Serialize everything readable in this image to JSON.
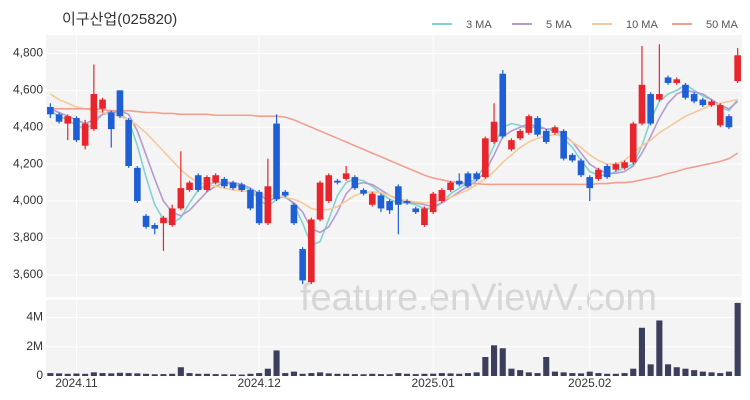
{
  "chart_data": {
    "type": "candlestick",
    "title": "이구산업(025820)",
    "watermark": "feature.enViewV.com",
    "categories": [
      null,
      null,
      null,
      "2024.11",
      null,
      null,
      null,
      null,
      null,
      null,
      null,
      null,
      null,
      null,
      null,
      null,
      null,
      null,
      null,
      null,
      null,
      null,
      null,
      null,
      "2024.12",
      null,
      null,
      null,
      null,
      null,
      null,
      null,
      null,
      null,
      null,
      null,
      null,
      null,
      null,
      null,
      null,
      null,
      null,
      null,
      "2025.01",
      null,
      null,
      null,
      null,
      null,
      null,
      null,
      null,
      null,
      null,
      null,
      null,
      null,
      null,
      null,
      null,
      null,
      "2025.02",
      null,
      null,
      null,
      null,
      null,
      null,
      null,
      null,
      null,
      null,
      null,
      null,
      null,
      null,
      null,
      null,
      null
    ],
    "ohlc": {
      "open": [
        4510,
        4470,
        4420,
        4450,
        4300,
        4390,
        4500,
        4480,
        4600,
        4440,
        4180,
        3920,
        3870,
        3880,
        3870,
        3960,
        4060,
        4140,
        4060,
        4100,
        4120,
        4100,
        4090,
        4060,
        4050,
        3880,
        4420,
        4050,
        3980,
        3740,
        3560,
        3900,
        4000,
        4110,
        4120,
        4130,
        4060,
        3980,
        4030,
        4000,
        4080,
        4000,
        3960,
        3870,
        3940,
        4000,
        4060,
        4110,
        4150,
        4150,
        4130,
        4320,
        4690,
        4280,
        4340,
        4370,
        4450,
        4380,
        4370,
        4380,
        4250,
        4220,
        4130,
        4120,
        4190,
        4170,
        4180,
        4210,
        4420,
        4580,
        4550,
        4670,
        4640,
        4630,
        4580,
        4550,
        4520,
        4410,
        4460,
        4650
      ],
      "high": [
        4530,
        4480,
        4470,
        4460,
        4440,
        4740,
        4560,
        4490,
        4600,
        4450,
        4190,
        3930,
        3880,
        3920,
        3980,
        4270,
        4110,
        4150,
        4140,
        4150,
        4130,
        4110,
        4100,
        4070,
        4060,
        4230,
        4470,
        4060,
        3990,
        3750,
        3910,
        4110,
        4150,
        4120,
        4190,
        4140,
        4070,
        4050,
        4040,
        4010,
        4090,
        4010,
        3970,
        3970,
        4050,
        4070,
        4110,
        4150,
        4160,
        4160,
        4350,
        4530,
        4710,
        4340,
        4390,
        4470,
        4460,
        4390,
        4410,
        4390,
        4260,
        4230,
        4140,
        4180,
        4200,
        4210,
        4220,
        4430,
        4840,
        4590,
        4850,
        4680,
        4670,
        4640,
        4590,
        4560,
        4550,
        4530,
        4470,
        4830
      ],
      "low": [
        4450,
        4420,
        4330,
        4320,
        4280,
        4380,
        4480,
        4290,
        4450,
        4180,
        3990,
        3850,
        3820,
        3730,
        3860,
        3950,
        4050,
        4050,
        4050,
        4090,
        4070,
        4060,
        4050,
        3950,
        3870,
        3870,
        4000,
        4020,
        3870,
        3550,
        3550,
        3890,
        3990,
        4090,
        4110,
        4060,
        4030,
        3970,
        3940,
        3930,
        3820,
        3980,
        3930,
        3860,
        3930,
        3990,
        4050,
        4080,
        4070,
        4110,
        4120,
        4310,
        4340,
        4270,
        4330,
        4360,
        4350,
        4310,
        4360,
        4220,
        4210,
        4130,
        4000,
        4110,
        4120,
        4160,
        4170,
        4200,
        4410,
        4410,
        4540,
        4630,
        4630,
        4550,
        4530,
        4510,
        4510,
        4400,
        4390,
        4640
      ],
      "close": [
        4470,
        4430,
        4460,
        4330,
        4420,
        4580,
        4550,
        4390,
        4460,
        4190,
        4000,
        3860,
        3850,
        3910,
        3960,
        4070,
        4100,
        4060,
        4130,
        4140,
        4080,
        4070,
        4060,
        3960,
        3880,
        4080,
        4010,
        4030,
        3880,
        3570,
        3900,
        4100,
        4140,
        4100,
        4150,
        4070,
        4040,
        4040,
        3960,
        3950,
        3980,
        3990,
        3940,
        3960,
        4040,
        4060,
        4100,
        4090,
        4080,
        4120,
        4340,
        4430,
        4350,
        4330,
        4380,
        4460,
        4360,
        4320,
        4400,
        4230,
        4220,
        4140,
        4070,
        4170,
        4130,
        4200,
        4210,
        4420,
        4630,
        4420,
        4580,
        4640,
        4660,
        4560,
        4540,
        4520,
        4540,
        4520,
        4400,
        4790
      ]
    },
    "up_color": "#e8242c",
    "down_color": "#1f5fd6",
    "series": [
      {
        "name": "3 MA",
        "color": "#7fd3d0",
        "values": [
          4490,
          4460,
          4440,
          4410,
          4390,
          4420,
          4470,
          4490,
          4470,
          4440,
          4300,
          4130,
          3980,
          3900,
          3880,
          3910,
          3990,
          4060,
          4090,
          4100,
          4100,
          4090,
          4080,
          4060,
          4010,
          3970,
          4010,
          4030,
          3980,
          3880,
          3760,
          3780,
          3900,
          4030,
          4100,
          4120,
          4110,
          4080,
          4040,
          4010,
          3990,
          3990,
          3980,
          3960,
          3960,
          3990,
          4040,
          4070,
          4100,
          4120,
          4200,
          4300,
          4400,
          4420,
          4410,
          4390,
          4410,
          4390,
          4380,
          4340,
          4290,
          4220,
          4160,
          4140,
          4140,
          4160,
          4180,
          4200,
          4300,
          4440,
          4540,
          4580,
          4600,
          4630,
          4600,
          4570,
          4550,
          4510,
          4490,
          4550
        ]
      },
      {
        "name": "5 MA",
        "color": "#b39ccf",
        "values": [
          4500,
          4480,
          4460,
          4440,
          4420,
          4440,
          4470,
          4480,
          4490,
          4470,
          4380,
          4250,
          4120,
          4000,
          3940,
          3920,
          3950,
          4000,
          4050,
          4080,
          4100,
          4100,
          4090,
          4070,
          4040,
          4000,
          4020,
          4020,
          3990,
          3940,
          3850,
          3830,
          3860,
          3940,
          4040,
          4090,
          4100,
          4090,
          4060,
          4030,
          4010,
          3990,
          3990,
          3980,
          3970,
          3990,
          4020,
          4050,
          4080,
          4110,
          4160,
          4250,
          4350,
          4380,
          4400,
          4420,
          4400,
          4390,
          4390,
          4360,
          4320,
          4260,
          4200,
          4170,
          4150,
          4150,
          4160,
          4190,
          4260,
          4350,
          4450,
          4530,
          4580,
          4600,
          4590,
          4580,
          4550,
          4520,
          4500,
          4540
        ]
      },
      {
        "name": "10 MA",
        "color": "#f5c99a",
        "values": [
          4580,
          4550,
          4530,
          4510,
          4500,
          4490,
          4480,
          4470,
          4460,
          4440,
          4410,
          4370,
          4320,
          4270,
          4220,
          4170,
          4130,
          4100,
          4090,
          4080,
          4070,
          4060,
          4055,
          4050,
          4040,
          4030,
          4030,
          4020,
          4010,
          3990,
          3960,
          3950,
          3955,
          3970,
          4000,
          4030,
          4045,
          4050,
          4045,
          4030,
          4015,
          4000,
          3995,
          3990,
          3995,
          4005,
          4020,
          4040,
          4060,
          4090,
          4120,
          4160,
          4210,
          4250,
          4290,
          4320,
          4340,
          4355,
          4360,
          4350,
          4320,
          4290,
          4250,
          4220,
          4200,
          4200,
          4220,
          4260,
          4300,
          4330,
          4370,
          4400,
          4430,
          4460,
          4480,
          4500,
          4520,
          4530,
          4540,
          4550
        ]
      },
      {
        "name": "50 MA",
        "color": "#f0a090",
        "values": [
          4500,
          4500,
          4500,
          4500,
          4500,
          4500,
          4495,
          4490,
          4490,
          4490,
          4485,
          4480,
          4480,
          4475,
          4475,
          4470,
          4470,
          4470,
          4470,
          4465,
          4465,
          4465,
          4465,
          4465,
          4460,
          4460,
          4460,
          4455,
          4440,
          4420,
          4400,
          4380,
          4360,
          4340,
          4320,
          4300,
          4280,
          4260,
          4240,
          4220,
          4200,
          4180,
          4160,
          4140,
          4125,
          4115,
          4105,
          4100,
          4095,
          4095,
          4090,
          4090,
          4090,
          4090,
          4090,
          4090,
          4090,
          4090,
          4090,
          4090,
          4090,
          4090,
          4090,
          4095,
          4095,
          4100,
          4100,
          4105,
          4115,
          4125,
          4135,
          4150,
          4160,
          4175,
          4185,
          4195,
          4205,
          4215,
          4230,
          4260
        ]
      }
    ],
    "ylim": [
      3480,
      4900
    ],
    "yticks": [
      {
        "value": 3600,
        "label": "3,600"
      },
      {
        "value": 3800,
        "label": "3,800"
      },
      {
        "value": 4000,
        "label": "4,000"
      },
      {
        "value": 4200,
        "label": "4,200"
      },
      {
        "value": 4400,
        "label": "4,400"
      },
      {
        "value": 4600,
        "label": "4,600"
      },
      {
        "value": 4800,
        "label": "4,800"
      }
    ],
    "grid": true,
    "legend": "top-right",
    "volume": {
      "color": "#3b3f5c",
      "ylim": [
        0,
        5200000
      ],
      "yticks": [
        0,
        {
          "value": 2000000,
          "label": "2M"
        },
        {
          "value": 4000000,
          "label": "4M"
        }
      ],
      "values": [
        200000,
        180000,
        150000,
        170000,
        150000,
        250000,
        200000,
        180000,
        220000,
        200000,
        180000,
        150000,
        120000,
        130000,
        150000,
        600000,
        200000,
        150000,
        150000,
        130000,
        120000,
        110000,
        100000,
        150000,
        200000,
        500000,
        1750000,
        200000,
        300000,
        150000,
        200000,
        250000,
        180000,
        150000,
        150000,
        130000,
        120000,
        150000,
        130000,
        120000,
        200000,
        150000,
        130000,
        150000,
        160000,
        200000,
        180000,
        150000,
        200000,
        250000,
        1300000,
        2100000,
        1900000,
        500000,
        400000,
        250000,
        200000,
        1300000,
        300000,
        250000,
        200000,
        180000,
        300000,
        200000,
        150000,
        150000,
        200000,
        500000,
        3300000,
        800000,
        3800000,
        800000,
        600000,
        500000,
        400000,
        300000,
        250000,
        200000,
        300000,
        5000000
      ]
    }
  }
}
